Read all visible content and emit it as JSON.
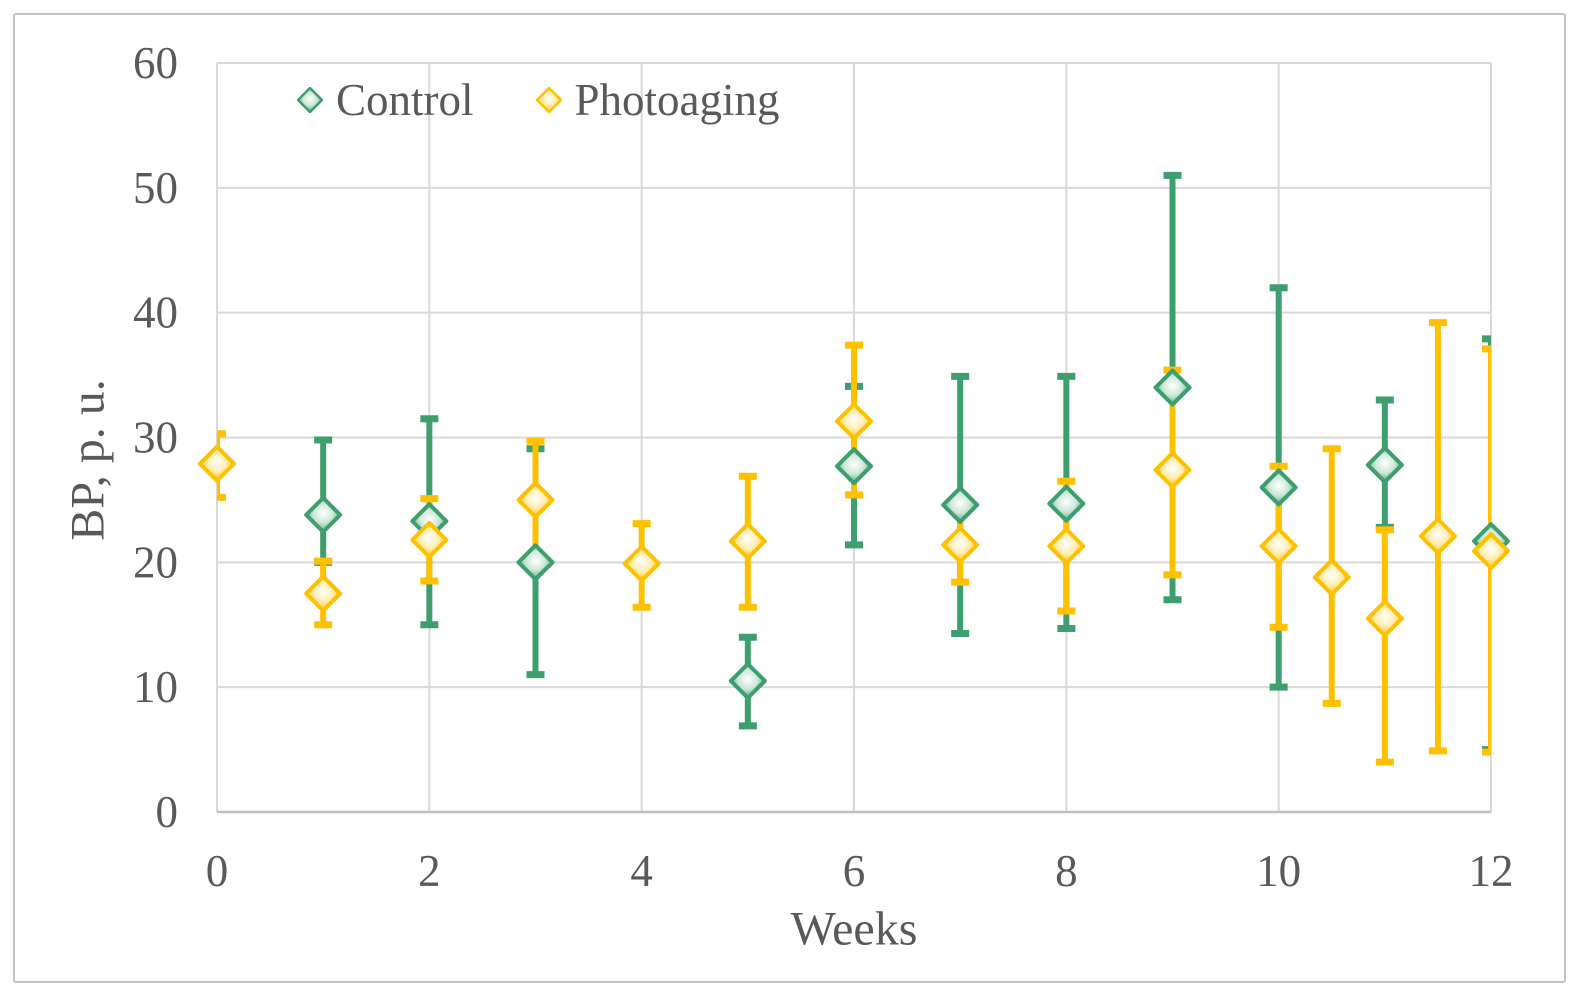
{
  "chart_data": {
    "type": "scatter",
    "title": "",
    "xlabel": "Weeks",
    "ylabel": "BP, p. u.",
    "xlim": [
      0,
      12
    ],
    "ylim": [
      0,
      60
    ],
    "x_ticks": [
      0,
      2,
      4,
      6,
      8,
      10,
      12
    ],
    "y_ticks": [
      0,
      10,
      20,
      30,
      40,
      50,
      60
    ],
    "grid": true,
    "legend_position": "top-left-inside",
    "error_bars": true,
    "colors": {
      "text": "#595959",
      "gridline": "#d9d9d9",
      "axis_line": "#bfbfbf"
    },
    "series": [
      {
        "name": "Control",
        "color": "#3E9E6E",
        "marker": "diamond",
        "points": [
          {
            "x": 1,
            "y": 23.8,
            "lo": 20.0,
            "hi": 29.8
          },
          {
            "x": 2,
            "y": 23.3,
            "lo": 15.0,
            "hi": 31.5
          },
          {
            "x": 3,
            "y": 20.0,
            "lo": 11.0,
            "hi": 29.1
          },
          {
            "x": 5,
            "y": 10.5,
            "lo": 6.9,
            "hi": 14.0
          },
          {
            "x": 6,
            "y": 27.7,
            "lo": 21.4,
            "hi": 34.1
          },
          {
            "x": 7,
            "y": 24.6,
            "lo": 14.3,
            "hi": 34.9
          },
          {
            "x": 8,
            "y": 24.7,
            "lo": 14.7,
            "hi": 34.9
          },
          {
            "x": 9,
            "y": 34.0,
            "lo": 17.0,
            "hi": 51.0
          },
          {
            "x": 10,
            "y": 26.0,
            "lo": 10.0,
            "hi": 42.0
          },
          {
            "x": 11,
            "y": 27.8,
            "lo": 22.8,
            "hi": 33.0
          },
          {
            "x": 12,
            "y": 21.7,
            "lo": 5.0,
            "hi": 37.9
          }
        ]
      },
      {
        "name": "Photoaging",
        "color": "#FFC000",
        "marker": "diamond",
        "points": [
          {
            "x": 0,
            "y": 27.9,
            "lo": 25.2,
            "hi": 30.3
          },
          {
            "x": 1,
            "y": 17.5,
            "lo": 15.0,
            "hi": 20.1
          },
          {
            "x": 2,
            "y": 21.8,
            "lo": 18.5,
            "hi": 25.1
          },
          {
            "x": 3,
            "y": 25.0,
            "lo": 20.4,
            "hi": 29.7
          },
          {
            "x": 4,
            "y": 19.9,
            "lo": 16.4,
            "hi": 23.1
          },
          {
            "x": 5,
            "y": 21.7,
            "lo": 16.4,
            "hi": 26.9
          },
          {
            "x": 6,
            "y": 31.3,
            "lo": 25.4,
            "hi": 37.4
          },
          {
            "x": 7,
            "y": 21.4,
            "lo": 18.4,
            "hi": 24.2
          },
          {
            "x": 8,
            "y": 21.3,
            "lo": 16.1,
            "hi": 26.5
          },
          {
            "x": 9,
            "y": 27.4,
            "lo": 19.0,
            "hi": 35.4
          },
          {
            "x": 10,
            "y": 21.3,
            "lo": 14.8,
            "hi": 27.7
          },
          {
            "x": 10.5,
            "y": 18.8,
            "lo": 8.7,
            "hi": 29.1
          },
          {
            "x": 11,
            "y": 15.5,
            "lo": 4.0,
            "hi": 22.6
          },
          {
            "x": 11.5,
            "y": 22.1,
            "lo": 4.9,
            "hi": 39.2
          },
          {
            "x": 12,
            "y": 20.9,
            "lo": 4.8,
            "hi": 37.1
          }
        ]
      }
    ]
  }
}
